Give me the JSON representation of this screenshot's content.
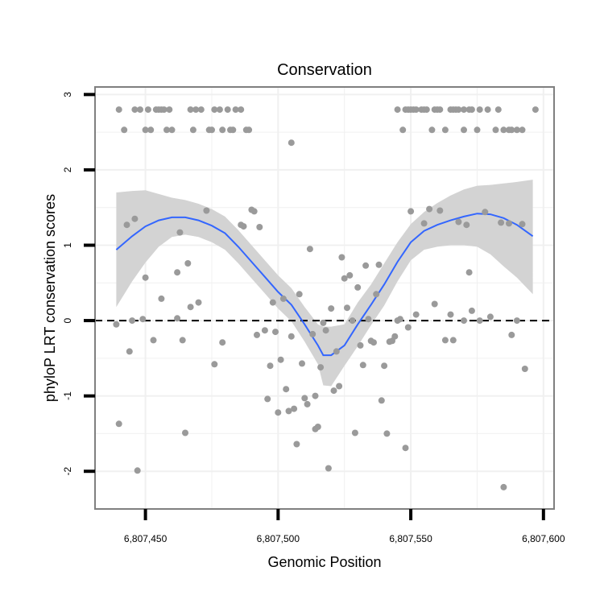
{
  "chart_data": {
    "type": "scatter",
    "title": "Conservation",
    "xlabel": "Genomic Position",
    "ylabel": "phyloP LRT conservation scores",
    "xlim": [
      6807431,
      6807604
    ],
    "ylim": [
      -2.5,
      3.1
    ],
    "x_ticks": [
      6807450,
      6807500,
      6807550,
      6807600
    ],
    "x_tick_labels": [
      "6,807,450",
      "6,807,500",
      "6,807,550",
      "6,807,600"
    ],
    "y_ticks": [
      -2,
      -1,
      0,
      1,
      2,
      3
    ],
    "y_tick_labels": [
      "-2",
      "-1",
      "0",
      "1",
      "2",
      "3"
    ],
    "reference_line": {
      "y": 0,
      "style": "dashed",
      "color": "#000000"
    },
    "colors": {
      "points": "#9a9a9a",
      "smooth_line": "#3366ff",
      "ribbon": "#d3d3d3",
      "grid": "#f0f0f0",
      "panel_border": "#7f7f7f"
    },
    "series": [
      {
        "name": "scores",
        "points": [
          [
            6807440,
            2.8
          ],
          [
            6807442,
            2.53
          ],
          [
            6807446,
            2.8
          ],
          [
            6807448,
            2.8
          ],
          [
            6807450,
            2.53
          ],
          [
            6807451,
            2.8
          ],
          [
            6807452,
            2.53
          ],
          [
            6807454,
            2.8
          ],
          [
            6807455,
            2.8
          ],
          [
            6807456,
            2.8
          ],
          [
            6807457,
            2.8
          ],
          [
            6807458,
            2.53
          ],
          [
            6807459,
            2.8
          ],
          [
            6807460,
            2.53
          ],
          [
            6807467,
            2.8
          ],
          [
            6807468,
            2.53
          ],
          [
            6807469,
            2.8
          ],
          [
            6807471,
            2.8
          ],
          [
            6807474,
            2.53
          ],
          [
            6807475,
            2.53
          ],
          [
            6807476,
            2.8
          ],
          [
            6807478,
            2.8
          ],
          [
            6807479,
            2.53
          ],
          [
            6807481,
            2.8
          ],
          [
            6807482,
            2.53
          ],
          [
            6807483,
            2.53
          ],
          [
            6807484,
            2.8
          ],
          [
            6807486,
            2.8
          ],
          [
            6807488,
            2.53
          ],
          [
            6807489,
            2.53
          ],
          [
            6807545,
            2.8
          ],
          [
            6807547,
            2.53
          ],
          [
            6807548,
            2.8
          ],
          [
            6807549,
            2.8
          ],
          [
            6807550,
            2.8
          ],
          [
            6807551,
            2.8
          ],
          [
            6807552,
            2.8
          ],
          [
            6807554,
            2.8
          ],
          [
            6807555,
            2.8
          ],
          [
            6807556,
            2.8
          ],
          [
            6807558,
            2.53
          ],
          [
            6807559,
            2.8
          ],
          [
            6807560,
            2.8
          ],
          [
            6807561,
            2.8
          ],
          [
            6807563,
            2.53
          ],
          [
            6807565,
            2.8
          ],
          [
            6807566,
            2.8
          ],
          [
            6807567,
            2.8
          ],
          [
            6807568,
            2.8
          ],
          [
            6807570,
            2.53
          ],
          [
            6807570,
            2.8
          ],
          [
            6807572,
            2.8
          ],
          [
            6807573,
            2.8
          ],
          [
            6807575,
            2.53
          ],
          [
            6807576,
            2.8
          ],
          [
            6807579,
            2.8
          ],
          [
            6807582,
            2.53
          ],
          [
            6807583,
            2.8
          ],
          [
            6807585,
            2.53
          ],
          [
            6807587,
            2.53
          ],
          [
            6807588,
            2.53
          ],
          [
            6807590,
            2.53
          ],
          [
            6807592,
            2.53
          ],
          [
            6807597,
            2.8
          ],
          [
            6807505,
            2.36
          ],
          [
            6807439,
            -0.05
          ],
          [
            6807440,
            -1.37
          ],
          [
            6807443,
            1.27
          ],
          [
            6807444,
            -0.41
          ],
          [
            6807445,
            0.0
          ],
          [
            6807446,
            1.35
          ],
          [
            6807447,
            -1.99
          ],
          [
            6807449,
            0.02
          ],
          [
            6807450,
            0.57
          ],
          [
            6807453,
            -0.26
          ],
          [
            6807456,
            0.29
          ],
          [
            6807462,
            0.64
          ],
          [
            6807462,
            0.03
          ],
          [
            6807463,
            1.17
          ],
          [
            6807464,
            -0.26
          ],
          [
            6807465,
            -1.49
          ],
          [
            6807466,
            0.76
          ],
          [
            6807467,
            0.18
          ],
          [
            6807470,
            0.24
          ],
          [
            6807473,
            1.46
          ],
          [
            6807476,
            -0.58
          ],
          [
            6807479,
            -0.29
          ],
          [
            6807486,
            1.27
          ],
          [
            6807487,
            1.25
          ],
          [
            6807490,
            1.47
          ],
          [
            6807491,
            1.45
          ],
          [
            6807492,
            -0.19
          ],
          [
            6807493,
            1.24
          ],
          [
            6807495,
            -0.13
          ],
          [
            6807496,
            -1.04
          ],
          [
            6807497,
            -0.6
          ],
          [
            6807498,
            0.24
          ],
          [
            6807499,
            -0.15
          ],
          [
            6807500,
            -1.22
          ],
          [
            6807501,
            -0.52
          ],
          [
            6807502,
            0.29
          ],
          [
            6807503,
            -0.91
          ],
          [
            6807504,
            -1.2
          ],
          [
            6807505,
            -0.21
          ],
          [
            6807506,
            -1.17
          ],
          [
            6807507,
            -1.64
          ],
          [
            6807508,
            0.35
          ],
          [
            6807509,
            -0.57
          ],
          [
            6807510,
            -1.03
          ],
          [
            6807511,
            -1.11
          ],
          [
            6807512,
            0.95
          ],
          [
            6807513,
            -0.18
          ],
          [
            6807514,
            -1.44
          ],
          [
            6807514,
            -1.0
          ],
          [
            6807515,
            -1.41
          ],
          [
            6807516,
            -0.62
          ],
          [
            6807517,
            -0.03
          ],
          [
            6807518,
            -0.13
          ],
          [
            6807519,
            -1.96
          ],
          [
            6807520,
            0.16
          ],
          [
            6807521,
            -0.93
          ],
          [
            6807522,
            -0.41
          ],
          [
            6807523,
            -0.87
          ],
          [
            6807524,
            0.84
          ],
          [
            6807525,
            0.56
          ],
          [
            6807526,
            0.17
          ],
          [
            6807527,
            0.6
          ],
          [
            6807528,
            0.0
          ],
          [
            6807529,
            -1.49
          ],
          [
            6807530,
            0.44
          ],
          [
            6807531,
            -0.33
          ],
          [
            6807532,
            -0.59
          ],
          [
            6807533,
            0.73
          ],
          [
            6807534,
            0.02
          ],
          [
            6807535,
            -0.27
          ],
          [
            6807536,
            -0.29
          ],
          [
            6807537,
            0.35
          ],
          [
            6807538,
            0.74
          ],
          [
            6807539,
            -1.06
          ],
          [
            6807540,
            -0.6
          ],
          [
            6807541,
            -1.5
          ],
          [
            6807542,
            -0.28
          ],
          [
            6807543,
            -0.27
          ],
          [
            6807544,
            -0.21
          ],
          [
            6807545,
            0.0
          ],
          [
            6807546,
            0.02
          ],
          [
            6807548,
            -1.69
          ],
          [
            6807549,
            -0.09
          ],
          [
            6807550,
            1.45
          ],
          [
            6807552,
            0.08
          ],
          [
            6807555,
            1.29
          ],
          [
            6807557,
            1.48
          ],
          [
            6807559,
            0.22
          ],
          [
            6807561,
            1.46
          ],
          [
            6807563,
            -0.26
          ],
          [
            6807565,
            0.08
          ],
          [
            6807566,
            -0.26
          ],
          [
            6807568,
            1.31
          ],
          [
            6807570,
            0.0
          ],
          [
            6807571,
            1.27
          ],
          [
            6807572,
            0.64
          ],
          [
            6807573,
            0.13
          ],
          [
            6807576,
            0.0
          ],
          [
            6807578,
            1.44
          ],
          [
            6807580,
            0.05
          ],
          [
            6807584,
            1.3
          ],
          [
            6807585,
            -2.21
          ],
          [
            6807587,
            1.29
          ],
          [
            6807588,
            -0.19
          ],
          [
            6807590,
            0.0
          ],
          [
            6807592,
            1.28
          ],
          [
            6807593,
            -0.64
          ]
        ]
      }
    ],
    "smooth": {
      "x": [
        6807439,
        6807445,
        6807450,
        6807455,
        6807460,
        6807465,
        6807470,
        6807475,
        6807480,
        6807485,
        6807490,
        6807495,
        6807500,
        6807505,
        6807510,
        6807515,
        6807517,
        6807520,
        6807525,
        6807530,
        6807535,
        6807540,
        6807545,
        6807550,
        6807555,
        6807560,
        6807565,
        6807570,
        6807575,
        6807580,
        6807585,
        6807590,
        6807596
      ],
      "y": [
        0.94,
        1.12,
        1.25,
        1.33,
        1.37,
        1.37,
        1.33,
        1.26,
        1.16,
        0.98,
        0.78,
        0.58,
        0.38,
        0.21,
        -0.05,
        -0.33,
        -0.46,
        -0.46,
        -0.33,
        -0.05,
        0.21,
        0.48,
        0.78,
        1.04,
        1.19,
        1.27,
        1.33,
        1.38,
        1.42,
        1.41,
        1.36,
        1.27,
        1.12
      ],
      "upper": [
        1.7,
        1.72,
        1.73,
        1.68,
        1.63,
        1.6,
        1.55,
        1.48,
        1.38,
        1.2,
        1.0,
        0.8,
        0.6,
        0.43,
        0.18,
        -0.05,
        -0.08,
        -0.08,
        -0.05,
        0.24,
        0.48,
        0.76,
        1.04,
        1.28,
        1.44,
        1.56,
        1.66,
        1.74,
        1.79,
        1.8,
        1.82,
        1.84,
        1.87
      ],
      "lower": [
        0.18,
        0.52,
        0.77,
        0.98,
        1.11,
        1.14,
        1.11,
        1.04,
        0.94,
        0.76,
        0.56,
        0.36,
        0.16,
        -0.01,
        -0.28,
        -0.58,
        -0.86,
        -0.87,
        -0.6,
        -0.34,
        -0.06,
        0.2,
        0.52,
        0.8,
        0.94,
        0.98,
        1.0,
        1.0,
        0.98,
        0.88,
        0.72,
        0.57,
        0.35
      ]
    }
  }
}
